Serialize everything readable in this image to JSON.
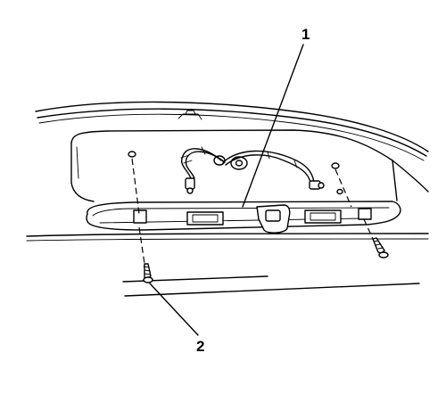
{
  "callouts": [
    {
      "id": "1",
      "label": "1"
    },
    {
      "id": "2",
      "label": "2"
    }
  ],
  "colors": {
    "line": "#000000",
    "background": "#ffffff"
  }
}
